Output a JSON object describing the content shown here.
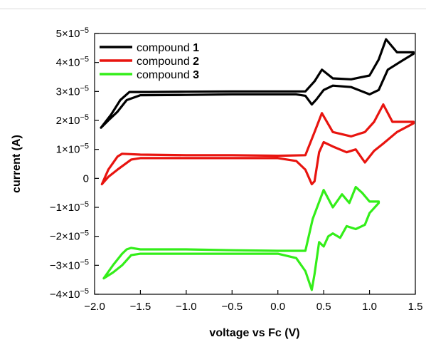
{
  "chart_data": {
    "type": "line",
    "title": "",
    "xlabel": "voltage vs Fc (V)",
    "ylabel": "current (A)",
    "xlim": [
      -2.0,
      1.5
    ],
    "ylim": [
      -4e-05,
      5e-05
    ],
    "x_ticks": [
      {
        "value": -2.0,
        "label": "−2.0"
      },
      {
        "value": -1.5,
        "label": "−1.5"
      },
      {
        "value": -1.0,
        "label": "−1.0"
      },
      {
        "value": -0.5,
        "label": "−0.5"
      },
      {
        "value": 0.0,
        "label": "0.0"
      },
      {
        "value": 0.5,
        "label": "0.5"
      },
      {
        "value": 1.0,
        "label": "1.0"
      },
      {
        "value": 1.5,
        "label": "1.5"
      }
    ],
    "y_ticks": [
      {
        "value": 5e-05,
        "mant": "5×10",
        "exp": "−5"
      },
      {
        "value": 4e-05,
        "mant": "4×10",
        "exp": "−5"
      },
      {
        "value": 3e-05,
        "mant": "3×10",
        "exp": "−5"
      },
      {
        "value": 2e-05,
        "mant": "2×10",
        "exp": "−5"
      },
      {
        "value": 1e-05,
        "mant": "1×10",
        "exp": "−5"
      },
      {
        "value": 0,
        "mant": "0",
        "exp": ""
      },
      {
        "value": -1e-05,
        "mant": "−1×10",
        "exp": "−5"
      },
      {
        "value": -2e-05,
        "mant": "−2×10",
        "exp": "−5"
      },
      {
        "value": -3e-05,
        "mant": "−3×10",
        "exp": "−5"
      },
      {
        "value": -4e-05,
        "mant": "−4×10",
        "exp": "−5"
      }
    ],
    "legend_position": "top-left",
    "grid": false,
    "series": [
      {
        "name": "compound 1",
        "legend_prefix": "compound ",
        "legend_number": "1",
        "color": "#000000",
        "x": [
          -1.93,
          -1.82,
          -1.72,
          -1.62,
          -1.4,
          -1.0,
          -0.5,
          0.0,
          0.3,
          0.4,
          0.48,
          0.6,
          0.8,
          1.0,
          1.1,
          1.18,
          1.3,
          1.48,
          1.48,
          1.35,
          1.2,
          1.1,
          1.0,
          0.8,
          0.6,
          0.5,
          0.42,
          0.37,
          0.3,
          0.2,
          0.0,
          -0.5,
          -1.0,
          -1.5,
          -1.65,
          -1.75,
          -1.85,
          -1.93
        ],
        "y": [
          1.75e-05,
          2.2e-05,
          2.7e-05,
          2.98e-05,
          2.98e-05,
          2.99e-05,
          3e-05,
          3e-05,
          3e-05,
          3.35e-05,
          3.75e-05,
          3.45e-05,
          3.42e-05,
          3.55e-05,
          4.1e-05,
          4.8e-05,
          4.35e-05,
          4.35e-05,
          4.3e-05,
          4.05e-05,
          3.75e-05,
          3.05e-05,
          2.9e-05,
          3.15e-05,
          3.2e-05,
          3.05e-05,
          2.72e-05,
          2.55e-05,
          2.85e-05,
          2.9e-05,
          2.9e-05,
          2.9e-05,
          2.88e-05,
          2.87e-05,
          2.7e-05,
          2.3e-05,
          2e-05,
          1.75e-05
        ]
      },
      {
        "name": "compound 2",
        "legend_prefix": "compound ",
        "legend_number": "2",
        "color": "#e8140f",
        "x": [
          -1.92,
          -1.85,
          -1.75,
          -1.7,
          -1.5,
          -1.0,
          -0.5,
          0.0,
          0.3,
          0.4,
          0.48,
          0.6,
          0.8,
          0.95,
          1.05,
          1.15,
          1.25,
          1.48,
          1.48,
          1.3,
          1.15,
          1.05,
          0.95,
          0.85,
          0.75,
          0.6,
          0.5,
          0.45,
          0.4,
          0.37,
          0.3,
          0.2,
          0.0,
          -0.5,
          -1.0,
          -1.5,
          -1.6,
          -1.75,
          -1.85,
          -1.92
        ],
        "y": [
          -2e-06,
          3e-06,
          7.5e-06,
          8.5e-06,
          8.2e-06,
          8e-06,
          8e-06,
          7.8e-06,
          8e-06,
          1.6e-05,
          2.25e-05,
          1.6e-05,
          1.45e-05,
          1.6e-05,
          1.95e-05,
          2.55e-05,
          1.95e-05,
          1.95e-05,
          1.9e-05,
          1.6e-05,
          1.2e-05,
          9.5e-06,
          5.5e-06,
          1e-05,
          9e-06,
          1.1e-05,
          1.25e-05,
          9e-06,
          -1e-06,
          -2e-06,
          3e-06,
          6e-06,
          7e-06,
          7e-06,
          7e-06,
          7e-06,
          6.5e-06,
          3e-06,
          5e-07,
          -2e-06
        ]
      },
      {
        "name": "compound 3",
        "legend_prefix": "compound ",
        "legend_number": "3",
        "color": "#33ee19",
        "x": [
          -1.9,
          -1.8,
          -1.7,
          -1.65,
          -1.6,
          -1.5,
          -1.0,
          -0.5,
          0.0,
          0.3,
          0.38,
          0.5,
          0.6,
          0.7,
          0.78,
          0.85,
          0.92,
          1.0,
          1.1,
          1.1,
          1.0,
          0.95,
          0.85,
          0.75,
          0.68,
          0.6,
          0.55,
          0.5,
          0.45,
          0.4,
          0.37,
          0.3,
          0.2,
          0.0,
          -0.5,
          -1.0,
          -1.5,
          -1.6,
          -1.7,
          -1.8,
          -1.9
        ],
        "y": [
          -3.45e-05,
          -3e-05,
          -2.6e-05,
          -2.45e-05,
          -2.4e-05,
          -2.45e-05,
          -2.45e-05,
          -2.48e-05,
          -2.5e-05,
          -2.5e-05,
          -1.4e-05,
          -4e-06,
          -1e-05,
          -5.5e-06,
          -8.5e-06,
          -3e-06,
          -5e-06,
          -8e-06,
          -8e-06,
          -8.5e-06,
          -1.2e-05,
          -1.6e-05,
          -1.75e-05,
          -1.65e-05,
          -2.05e-05,
          -1.9e-05,
          -2e-05,
          -2.35e-05,
          -2.2e-05,
          -3.3e-05,
          -3.85e-05,
          -3.2e-05,
          -2.75e-05,
          -2.6e-05,
          -2.6e-05,
          -2.6e-05,
          -2.6e-05,
          -2.65e-05,
          -3e-05,
          -3.25e-05,
          -3.45e-05
        ]
      }
    ]
  }
}
